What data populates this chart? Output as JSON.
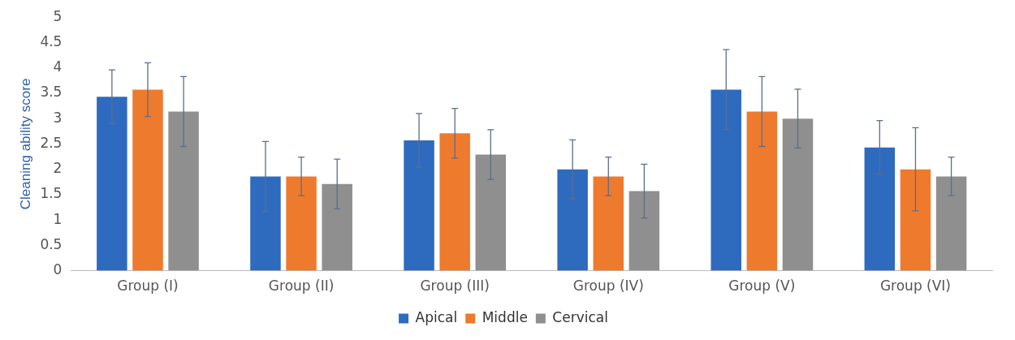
{
  "chart_data": {
    "type": "bar",
    "ylabel": "Cleaning ability score",
    "categories": [
      "Group (I)",
      "Group (II)",
      "Group (III)",
      "Group (IV)",
      "Group (V)",
      "Group (VI)"
    ],
    "series": [
      {
        "name": "Apical",
        "color": "#2e6bbf",
        "values": [
          3.43,
          1.86,
          2.57,
          2.0,
          3.57,
          2.43
        ],
        "errors": [
          0.53,
          0.69,
          0.53,
          0.58,
          0.79,
          0.53
        ]
      },
      {
        "name": "Middle",
        "color": "#ee7a2e",
        "values": [
          3.57,
          1.86,
          2.71,
          1.86,
          3.14,
          2.0
        ],
        "errors": [
          0.53,
          0.38,
          0.49,
          0.38,
          0.69,
          0.82
        ]
      },
      {
        "name": "Cervical",
        "color": "#8f8f8f",
        "values": [
          3.14,
          1.71,
          2.29,
          1.57,
          3.0,
          1.86
        ],
        "errors": [
          0.69,
          0.49,
          0.49,
          0.53,
          0.58,
          0.38
        ]
      }
    ],
    "ylim": [
      0,
      5
    ],
    "yticks": [
      0,
      0.5,
      1,
      1.5,
      2,
      2.5,
      3,
      3.5,
      4,
      4.5,
      5
    ],
    "grid": false,
    "legend": "bottom"
  }
}
